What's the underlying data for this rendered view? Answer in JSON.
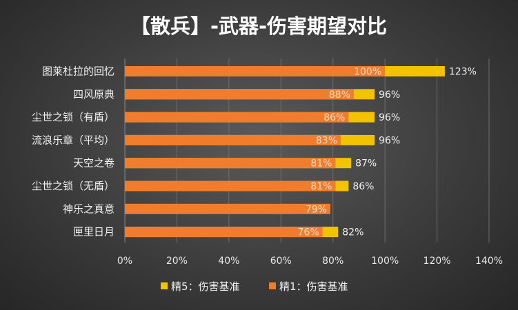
{
  "colors": {
    "refine1": "#f07d2d",
    "refine5": "#f2c300",
    "grid": "#6e6e6e"
  },
  "chart_data": {
    "type": "bar",
    "orientation": "horizontal",
    "title": "【散兵】-武器-伤害期望对比",
    "categories": [
      "图莱杜拉的回忆",
      "四风原典",
      "尘世之锁（有盾）",
      "流浪乐章（平均）",
      "天空之卷",
      "尘世之锁（无盾）",
      "神乐之真意",
      "匣里日月"
    ],
    "series": [
      {
        "name": "精1：伤害基准",
        "values": [
          100,
          88,
          86,
          83,
          81,
          81,
          79,
          76
        ],
        "labels": [
          "100%",
          "88%",
          "86%",
          "83%",
          "81%",
          "81%",
          "79%",
          "76%"
        ]
      },
      {
        "name": "精5：伤害基准",
        "values": [
          123,
          96,
          96,
          96,
          87,
          86,
          null,
          82
        ],
        "labels": [
          "123%",
          "96%",
          "96%",
          "96%",
          "87%",
          "86%",
          "",
          "82%"
        ]
      }
    ],
    "xlim": [
      0,
      140
    ],
    "xticks": [
      "0%",
      "20%",
      "40%",
      "60%",
      "80%",
      "100%",
      "120%",
      "140%"
    ],
    "legend_order": [
      "精5：伤害基准",
      "精1：伤害基准"
    ],
    "legend_position": "bottom",
    "grid": true
  }
}
